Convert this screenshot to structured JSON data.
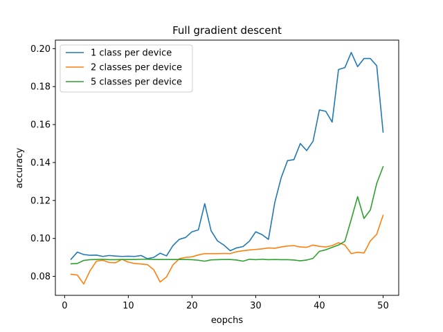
{
  "chart_data": {
    "type": "line",
    "title": "Full gradient descent",
    "xlabel": "eopchs",
    "ylabel": "accuracy",
    "xlim": [
      -1.45,
      52.45
    ],
    "ylim": [
      0.07,
      0.2045
    ],
    "xticks": [
      0,
      10,
      20,
      30,
      40,
      50
    ],
    "xtick_labels": [
      "0",
      "10",
      "20",
      "30",
      "40",
      "50"
    ],
    "yticks": [
      0.08,
      0.1,
      0.12,
      0.14,
      0.16,
      0.18,
      0.2
    ],
    "ytick_labels": [
      "0.08",
      "0.10",
      "0.12",
      "0.14",
      "0.16",
      "0.18",
      "0.20"
    ],
    "grid": false,
    "legend_position": "upper-left",
    "x": [
      1,
      2,
      3,
      4,
      5,
      6,
      7,
      8,
      9,
      10,
      11,
      12,
      13,
      14,
      15,
      16,
      17,
      18,
      19,
      20,
      21,
      22,
      23,
      24,
      25,
      26,
      27,
      28,
      29,
      30,
      31,
      32,
      33,
      34,
      35,
      36,
      37,
      38,
      39,
      40,
      41,
      42,
      43,
      44,
      45,
      46,
      47,
      48,
      49,
      50
    ],
    "series": [
      {
        "name": "1 class per device",
        "color": "#1f77b4",
        "values": [
          0.089,
          0.0928,
          0.0915,
          0.0911,
          0.0912,
          0.0905,
          0.091,
          0.0907,
          0.0905,
          0.0906,
          0.0905,
          0.091,
          0.0893,
          0.09,
          0.0922,
          0.0908,
          0.0962,
          0.0995,
          0.1005,
          0.1035,
          0.1045,
          0.1183,
          0.104,
          0.0987,
          0.0965,
          0.0935,
          0.095,
          0.0957,
          0.0985,
          0.1035,
          0.102,
          0.0995,
          0.119,
          0.132,
          0.141,
          0.1415,
          0.15,
          0.1463,
          0.1512,
          0.1677,
          0.167,
          0.1613,
          0.189,
          0.19,
          0.198,
          0.1905,
          0.1948,
          0.1948,
          0.191,
          0.156
        ]
      },
      {
        "name": "2 classes per device",
        "color": "#ff7f0e",
        "values": [
          0.0811,
          0.0807,
          0.076,
          0.083,
          0.088,
          0.0885,
          0.0873,
          0.0872,
          0.089,
          0.0875,
          0.0868,
          0.0865,
          0.0862,
          0.0835,
          0.077,
          0.0797,
          0.086,
          0.0893,
          0.09,
          0.0903,
          0.0913,
          0.092,
          0.092,
          0.092,
          0.0921,
          0.092,
          0.093,
          0.0935,
          0.0939,
          0.0942,
          0.0945,
          0.095,
          0.0948,
          0.0955,
          0.096,
          0.0962,
          0.0955,
          0.0953,
          0.0965,
          0.0958,
          0.0955,
          0.0962,
          0.0977,
          0.0965,
          0.092,
          0.0927,
          0.0923,
          0.0987,
          0.1022,
          0.1122
        ]
      },
      {
        "name": "5 classes per device",
        "color": "#2ca02c",
        "values": [
          0.0866,
          0.0868,
          0.0884,
          0.0888,
          0.0889,
          0.089,
          0.0888,
          0.0888,
          0.0889,
          0.0889,
          0.0889,
          0.089,
          0.089,
          0.0889,
          0.0889,
          0.0889,
          0.0889,
          0.0889,
          0.0889,
          0.0888,
          0.0885,
          0.088,
          0.0887,
          0.0888,
          0.0889,
          0.0889,
          0.0886,
          0.088,
          0.089,
          0.0888,
          0.089,
          0.0888,
          0.0889,
          0.0888,
          0.0888,
          0.0886,
          0.0882,
          0.0886,
          0.0895,
          0.0932,
          0.094,
          0.0953,
          0.0965,
          0.0985,
          0.11,
          0.122,
          0.1105,
          0.115,
          0.129,
          0.1378
        ]
      }
    ]
  }
}
